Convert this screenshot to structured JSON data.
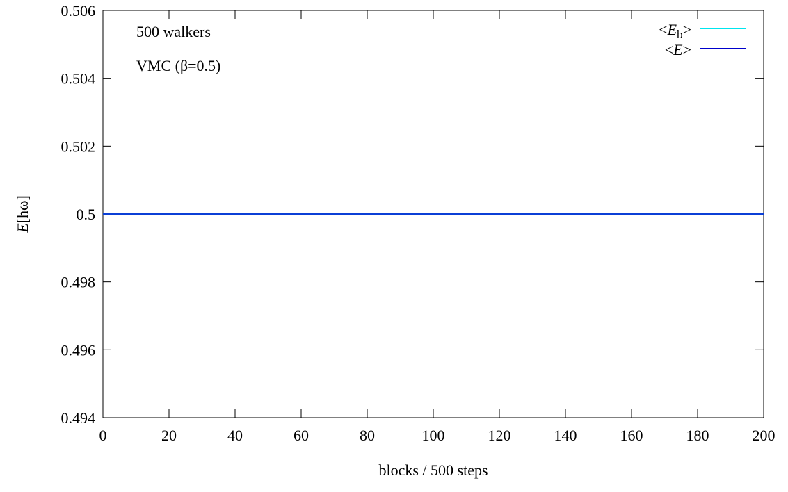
{
  "chart_data": {
    "type": "line",
    "xlabel": "blocks / 500 steps",
    "ylabel_italic": "E",
    "ylabel_rest": "[ħω]",
    "xlim": [
      0,
      200
    ],
    "ylim": [
      0.494,
      0.506
    ],
    "xticks": [
      0,
      20,
      40,
      60,
      80,
      100,
      120,
      140,
      160,
      180,
      200
    ],
    "yticks": [
      0.494,
      0.496,
      0.498,
      0.5,
      0.502,
      0.504,
      0.506
    ],
    "xtick_labels": [
      "0",
      "20",
      "40",
      "60",
      "80",
      "100",
      "120",
      "140",
      "160",
      "180",
      "200"
    ],
    "ytick_labels": [
      "0.494",
      "0.496",
      "0.498",
      "0.5",
      "0.502",
      "0.504",
      "0.506"
    ],
    "grid": false,
    "legend_position": "top-right",
    "annotations": [
      "500 walkers",
      "VMC (β=0.5)"
    ],
    "legend": [
      {
        "lt": "<",
        "italic": "E",
        "sub": "b",
        "gt": ">",
        "color": "#00e5ee"
      },
      {
        "lt": "<",
        "italic": "E",
        "sub": "",
        "gt": ">",
        "color": "#0000cc"
      }
    ],
    "series": [
      {
        "color": "#00e5ee",
        "x": [
          0,
          200
        ],
        "y": [
          0.5,
          0.5
        ]
      },
      {
        "color": "#0b3fd6",
        "x": [
          0,
          200
        ],
        "y": [
          0.5,
          0.5
        ]
      }
    ]
  }
}
